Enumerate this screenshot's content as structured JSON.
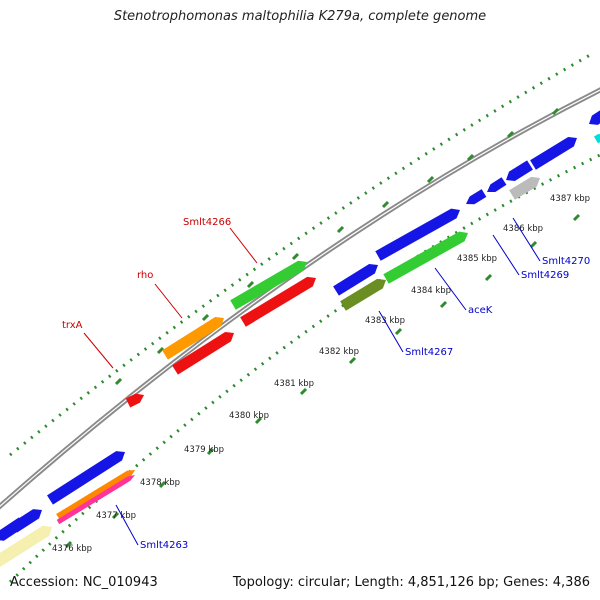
{
  "title": "Stenotrophomonas maltophilia K279a, complete genome",
  "footer": {
    "accession": "Accession: NC_010943",
    "topology": "Topology: circular; Length: 4,851,126 bp; Genes: 4,386"
  },
  "colors": {
    "backbone": "#8a8a8a",
    "tick": "#2e8b2e",
    "blue": "#1515e6",
    "red": "#ee1111",
    "orange": "#ff9900",
    "green": "#33cc33",
    "olive": "#6b8e23",
    "khaki": "#f5f0b0",
    "gray": "#bbbbbb",
    "pink": "#ff3399",
    "cyan": "#00dddd",
    "label_red": "#cc0000",
    "label_blue": "#0000cc"
  },
  "kbp_labels": [
    {
      "id": "4376",
      "text": "4376 kbp"
    },
    {
      "id": "4377",
      "text": "4377 kbp"
    },
    {
      "id": "4378",
      "text": "4378 kbp"
    },
    {
      "id": "4379",
      "text": "4379 kbp"
    },
    {
      "id": "4380",
      "text": "4380 kbp"
    },
    {
      "id": "4381",
      "text": "4381 kbp"
    },
    {
      "id": "4382",
      "text": "4382 kbp"
    },
    {
      "id": "4383",
      "text": "4383 kbp"
    },
    {
      "id": "4384",
      "text": "4384 kbp"
    },
    {
      "id": "4385",
      "text": "4385 kbp"
    },
    {
      "id": "4386",
      "text": "4386 kbp"
    },
    {
      "id": "4387",
      "text": "4387 kbp"
    }
  ],
  "gene_labels": [
    {
      "id": "Smlt4266",
      "text": "Smlt4266",
      "color": "#cc0000"
    },
    {
      "id": "rho",
      "text": "rho",
      "color": "#cc0000"
    },
    {
      "id": "trxA",
      "text": "trxA",
      "color": "#cc0000"
    },
    {
      "id": "Smlt4270",
      "text": "Smlt4270",
      "color": "#0000cc"
    },
    {
      "id": "Smlt4269",
      "text": "Smlt4269",
      "color": "#0000cc"
    },
    {
      "id": "aceK",
      "text": "aceK",
      "color": "#0000cc"
    },
    {
      "id": "Smlt4267",
      "text": "Smlt4267",
      "color": "#0000cc"
    },
    {
      "id": "Smlt4263",
      "text": "Smlt4263",
      "color": "#0000cc"
    }
  ]
}
